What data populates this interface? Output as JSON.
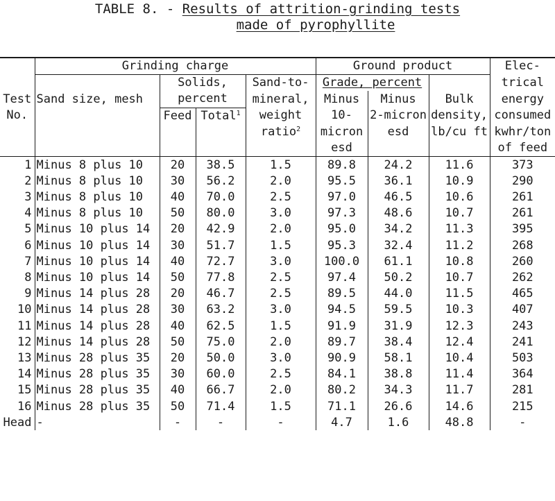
{
  "title": {
    "prefix": "TABLE 8. - ",
    "line1": "Results of attrition-grinding tests",
    "line2": "made of pyrophyllite"
  },
  "header": {
    "grinding_charge": "Grinding charge",
    "ground_product": "Ground product",
    "electrical": [
      "Elec-",
      "trical",
      "energy",
      "consumed",
      "kwhr/ton",
      "of feed"
    ],
    "test_no": [
      "Test",
      "No."
    ],
    "sand_size": "Sand size, mesh",
    "solids": [
      "Solids,",
      "percent"
    ],
    "feed": "Feed",
    "total": "Total",
    "total_note": "1",
    "sand_to_mineral": [
      "Sand-to-",
      "mineral,",
      "weight",
      "ratio"
    ],
    "ratio_note": "2",
    "grade": "Grade, percent",
    "minus10": [
      "Minus",
      "10-",
      "micron",
      "esd"
    ],
    "minus2": [
      "Minus",
      "2-micron",
      "esd"
    ],
    "bulk": [
      "Bulk",
      "density,",
      "lb/cu ft"
    ]
  },
  "rows": [
    [
      "1",
      "Minus 8 plus 10",
      "20",
      "38.5",
      "1.5",
      "89.8",
      "24.2",
      "11.6",
      "373"
    ],
    [
      "2",
      "Minus 8 plus 10",
      "30",
      "56.2",
      "2.0",
      "95.5",
      "36.1",
      "10.9",
      "290"
    ],
    [
      "3",
      "Minus 8 plus 10",
      "40",
      "70.0",
      "2.5",
      "97.0",
      "46.5",
      "10.6",
      "261"
    ],
    [
      "4",
      "Minus 8 plus 10",
      "50",
      "80.0",
      "3.0",
      "97.3",
      "48.6",
      "10.7",
      "261"
    ],
    [
      "5",
      "Minus 10 plus 14",
      "20",
      "42.9",
      "2.0",
      "95.0",
      "34.2",
      "11.3",
      "395"
    ],
    [
      "6",
      "Minus 10 plus 14",
      "30",
      "51.7",
      "1.5",
      "95.3",
      "32.4",
      "11.2",
      "268"
    ],
    [
      "7",
      "Minus 10 plus 14",
      "40",
      "72.7",
      "3.0",
      "100.0",
      "61.1",
      "10.8",
      "260"
    ],
    [
      "8",
      "Minus 10 plus 14",
      "50",
      "77.8",
      "2.5",
      "97.4",
      "50.2",
      "10.7",
      "262"
    ],
    [
      "9",
      "Minus 14 plus 28",
      "20",
      "46.7",
      "2.5",
      "89.5",
      "44.0",
      "11.5",
      "465"
    ],
    [
      "10",
      "Minus 14 plus 28",
      "30",
      "63.2",
      "3.0",
      "94.5",
      "59.5",
      "10.3",
      "407"
    ],
    [
      "11",
      "Minus 14 plus 28",
      "40",
      "62.5",
      "1.5",
      "91.9",
      "31.9",
      "12.3",
      "243"
    ],
    [
      "12",
      "Minus 14 plus 28",
      "50",
      "75.0",
      "2.0",
      "89.7",
      "38.4",
      "12.4",
      "241"
    ],
    [
      "13",
      "Minus 28 plus 35",
      "20",
      "50.0",
      "3.0",
      "90.9",
      "58.1",
      "10.4",
      "503"
    ],
    [
      "14",
      "Minus 28 plus 35",
      "30",
      "60.0",
      "2.5",
      "84.1",
      "38.8",
      "11.4",
      "364"
    ],
    [
      "15",
      "Minus 28 plus 35",
      "40",
      "66.7",
      "2.0",
      "80.2",
      "34.3",
      "11.7",
      "281"
    ],
    [
      "16",
      "Minus 28 plus 35",
      "50",
      "71.4",
      "1.5",
      "71.1",
      "26.6",
      "14.6",
      "215"
    ],
    [
      "Head",
      "-",
      "-",
      "-",
      "-",
      "4.7",
      "1.6",
      "48.8",
      "-"
    ]
  ]
}
